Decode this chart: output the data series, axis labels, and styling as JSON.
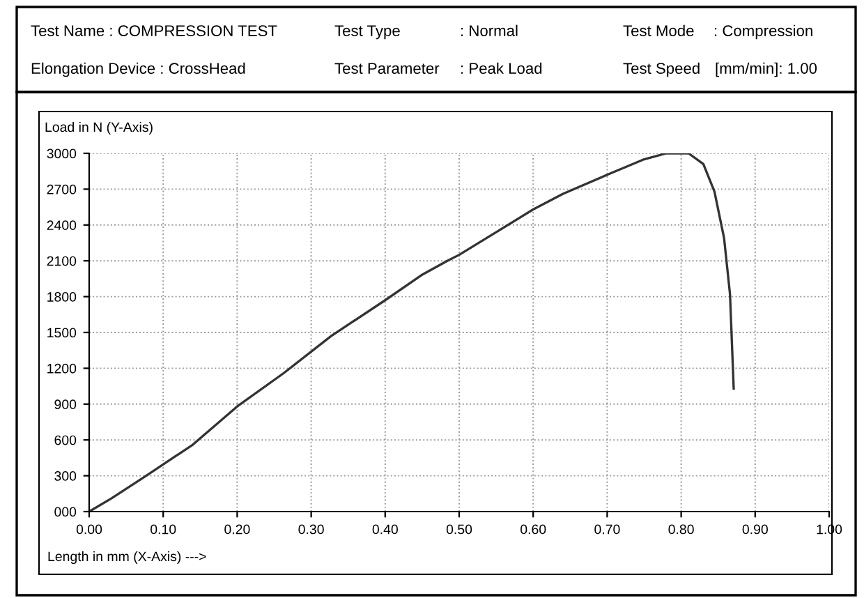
{
  "chart_data": {
    "type": "line",
    "xlabel": "Length in mm (X-Axis) --->",
    "ylabel": "Load in N (Y-Axis)",
    "annotations": [
      "Test Name : COMPRESSION TEST",
      "Test Type",
      ": Normal",
      "Test Mode",
      ": Compression",
      "Elongation Device : CrossHead",
      "Test Parameter",
      ": Peak Load",
      "Test Speed",
      "[mm/min]: 1.00"
    ],
    "series": [
      {
        "color": "#333333",
        "x": [
          0,
          0.03,
          0.077,
          0.14,
          0.2,
          0.263,
          0.327,
          0.4,
          0.449,
          0.484,
          0.5,
          0.55,
          0.6,
          0.64,
          0.7,
          0.75,
          0.78,
          0.81,
          0.83,
          0.845,
          0.858,
          0.866,
          0.871
        ],
        "values": [
          0,
          110,
          300,
          560,
          880,
          1160,
          1470,
          1770,
          1980,
          2100,
          2150,
          2340,
          2530,
          2660,
          2820,
          2950,
          3000,
          3000,
          2910,
          2680,
          2290,
          1820,
          1030
        ]
      }
    ],
    "xlim": [
      0,
      1
    ],
    "ylim": [
      0,
      3000
    ],
    "xticks": [
      {
        "value": 0,
        "label": "0.00"
      },
      {
        "value": 0.1,
        "label": "0.10"
      },
      {
        "value": 0.2,
        "label": "0.20"
      },
      {
        "value": 0.3,
        "label": "0.30"
      },
      {
        "value": 0.4,
        "label": "0.40"
      },
      {
        "value": 0.5,
        "label": "0.50"
      },
      {
        "value": 0.6,
        "label": "0.60"
      },
      {
        "value": 0.7,
        "label": "0.70"
      },
      {
        "value": 0.8,
        "label": "0.80"
      },
      {
        "value": 0.9,
        "label": "0.90"
      },
      {
        "value": 1,
        "label": "1.00"
      }
    ],
    "yticks": [
      {
        "value": 0,
        "label": "000"
      },
      300,
      600,
      900,
      1200,
      1500,
      1800,
      2100,
      2400,
      2700,
      3000
    ],
    "grid": true,
    "legend": false,
    "marker": "none",
    "line_style": "solid"
  }
}
